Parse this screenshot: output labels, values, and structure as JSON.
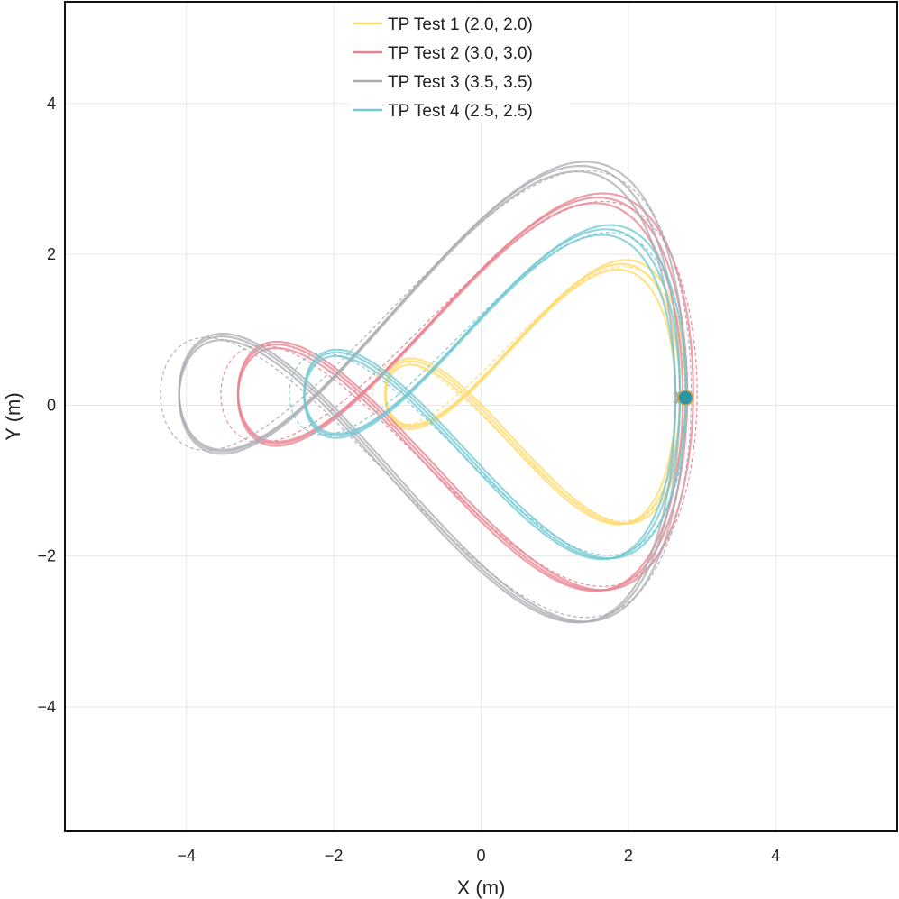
{
  "chart_data": {
    "type": "line",
    "title": "",
    "xlabel": "X (m)",
    "ylabel": "Y (m)",
    "xlim": [
      -5.65,
      5.65
    ],
    "ylim": [
      -5.65,
      5.35
    ],
    "x_ticks": [
      -4,
      -2,
      0,
      2,
      4
    ],
    "y_ticks": [
      -4,
      -2,
      0,
      2,
      4
    ],
    "x_tick_labels": [
      "−4",
      "−2",
      "0",
      "2",
      "4"
    ],
    "y_tick_labels": [
      "−4",
      "−2",
      "0",
      "2",
      "4"
    ],
    "grid": true,
    "legend_position": "top-center",
    "series": [
      {
        "name": "TP Test 1 (2.0, 2.0)",
        "color": "#ffd966",
        "amp_x": 2.0,
        "amp_y": 2.05,
        "center": [
          0.7,
          0.15
        ],
        "marker": [
          2.7,
          0.1
        ]
      },
      {
        "name": "TP Test 2 (3.0, 3.0)",
        "color": "#e8808e",
        "amp_x": 3.05,
        "amp_y": 3.1,
        "center": [
          -0.25,
          0.15
        ],
        "marker": [
          2.7,
          0.1
        ]
      },
      {
        "name": "TP Test 3 (3.5, 3.5)",
        "color": "#a9acb1",
        "amp_x": 3.4,
        "amp_y": 3.6,
        "center": [
          -0.7,
          0.15
        ],
        "marker": [
          2.7,
          0.1
        ]
      },
      {
        "name": "TP Test 4 (2.5, 2.5)",
        "color": "#72c7d1",
        "amp_x": 2.55,
        "amp_y": 2.6,
        "center": [
          0.15,
          0.15
        ],
        "marker": [
          2.75,
          0.1
        ]
      }
    ]
  }
}
